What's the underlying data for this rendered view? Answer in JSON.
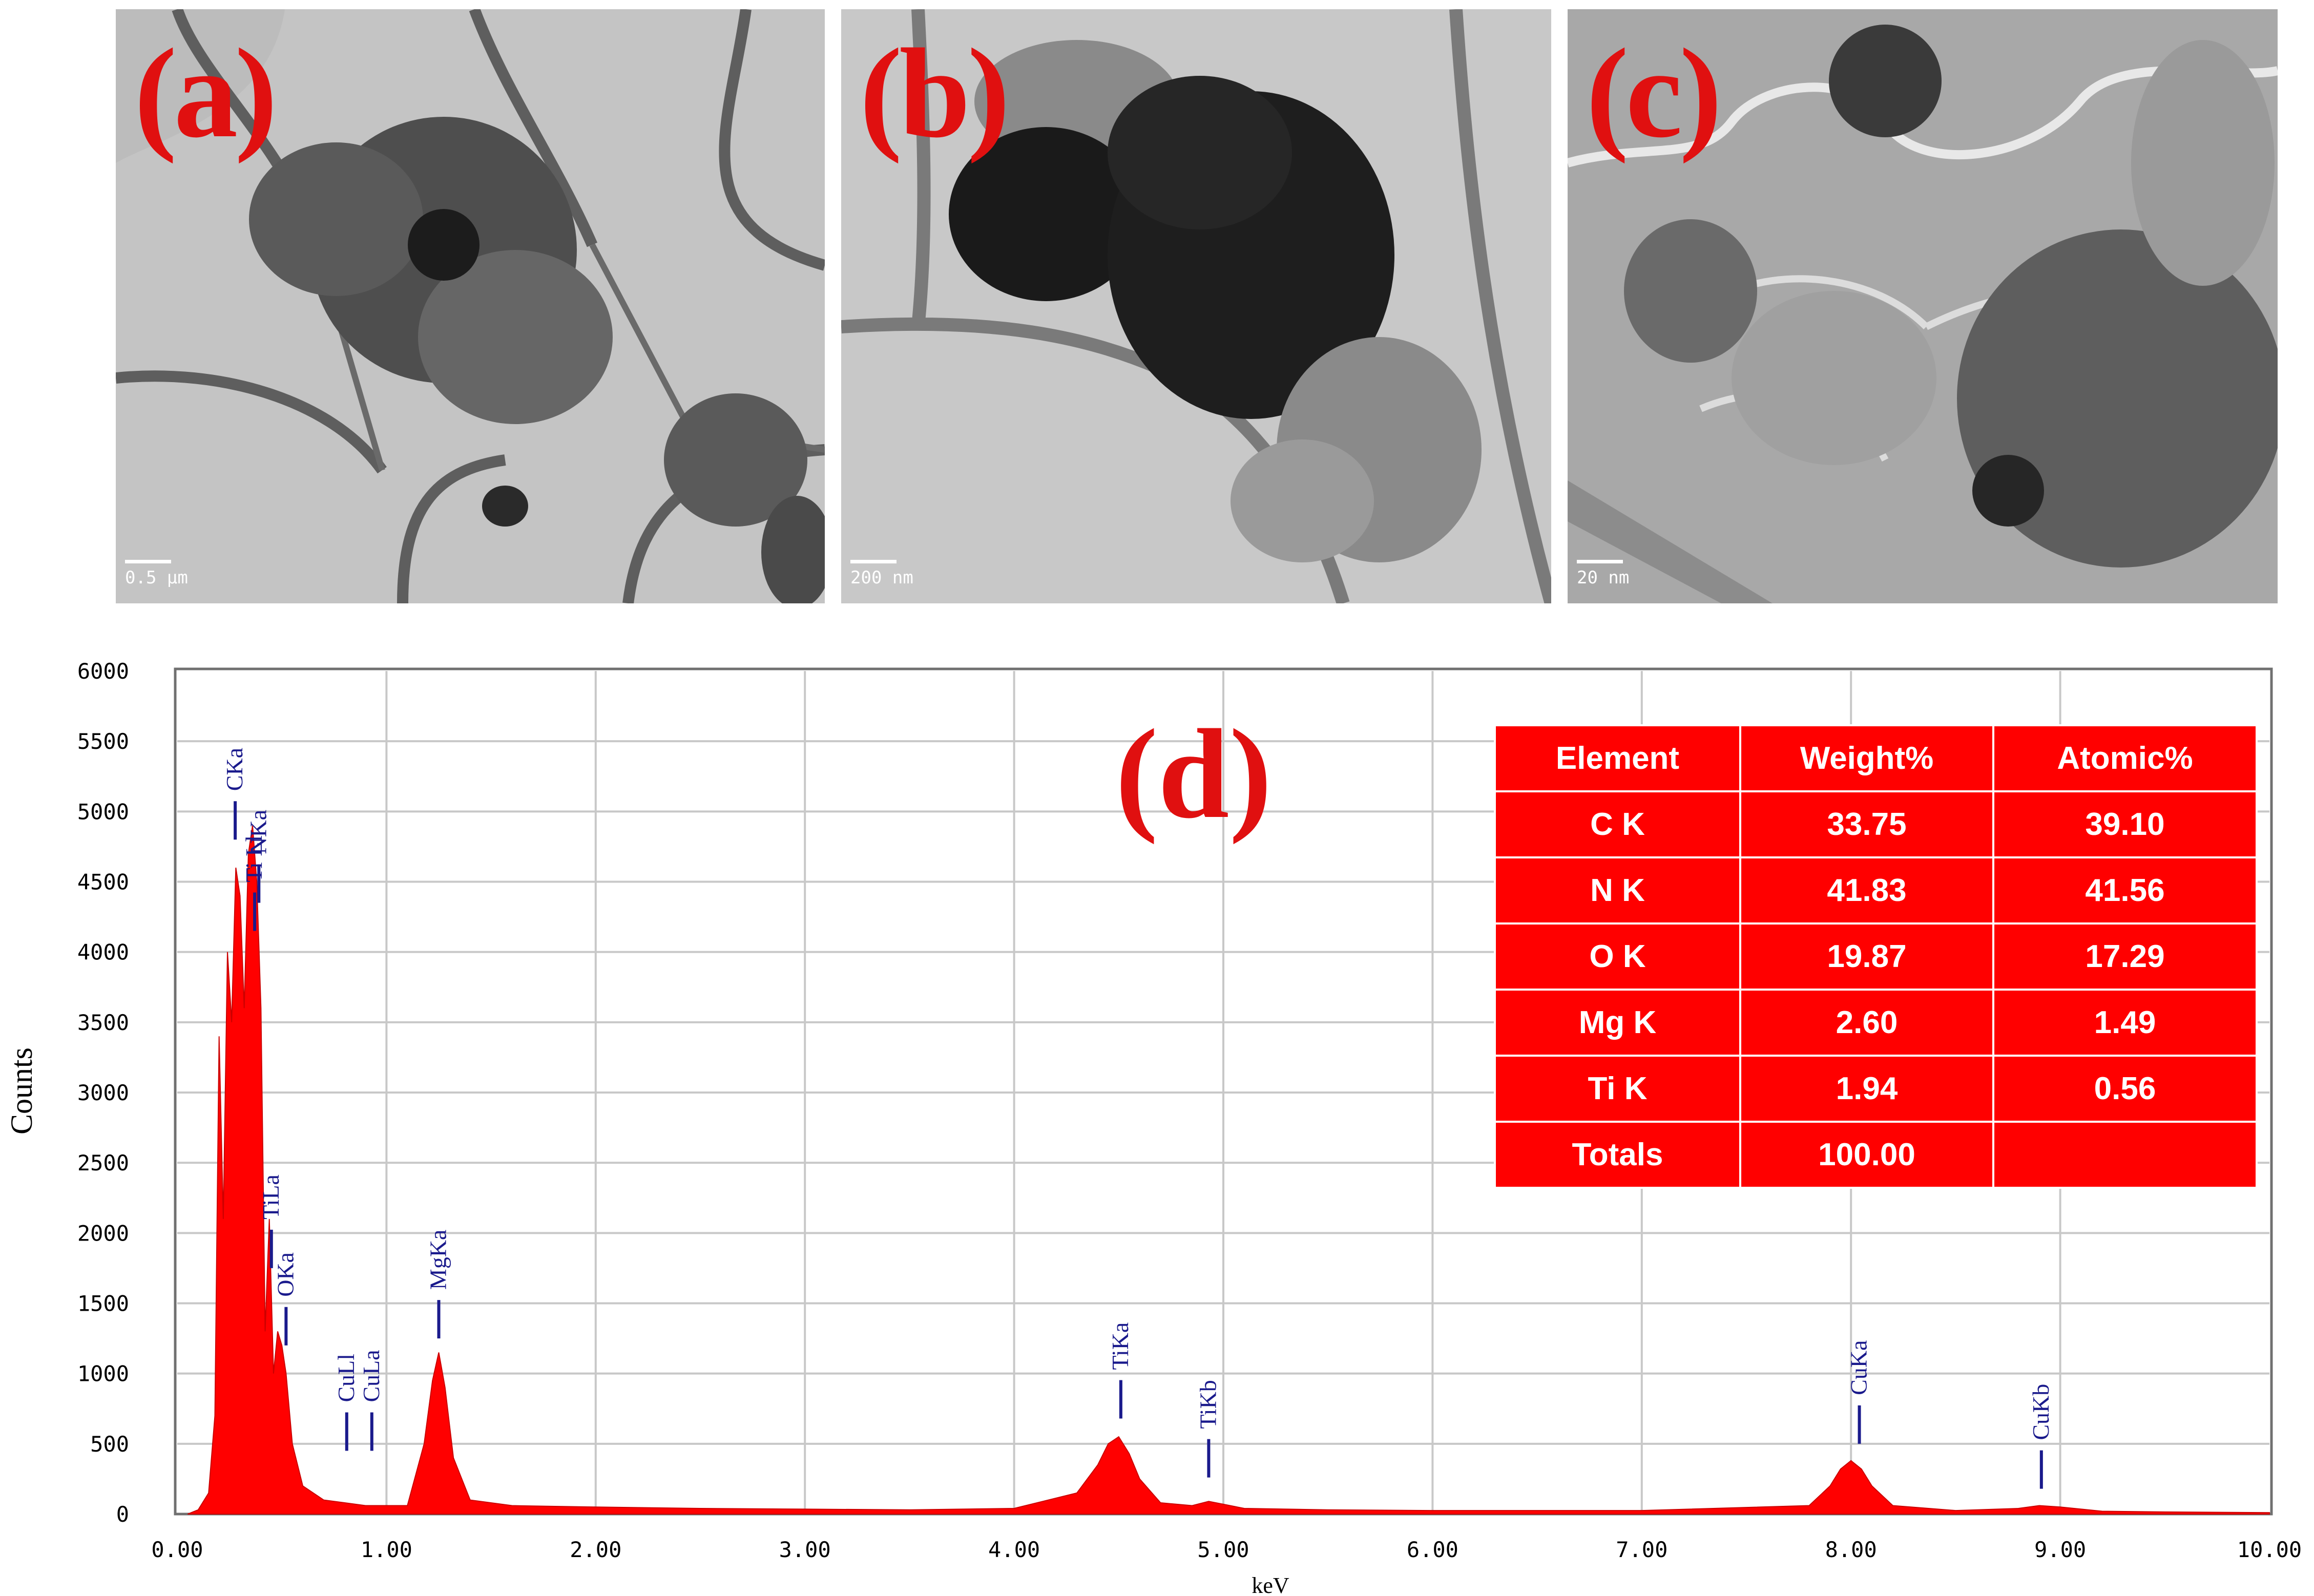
{
  "panels": [
    {
      "label": "(a)",
      "scale_bar": "0.5 µm"
    },
    {
      "label": "(b)",
      "scale_bar": "200 nm"
    },
    {
      "label": "(c)",
      "scale_bar": "20 nm"
    }
  ],
  "colors": {
    "panel_label": "#e01010",
    "spectrum": "#ff0000",
    "peak_label": "#1a1a8c",
    "table_bg": "#ff0000",
    "table_text": "#ffffff"
  },
  "chart_data": {
    "type": "area",
    "panel_label": "(d)",
    "xlabel": "keV",
    "ylabel": "Counts",
    "xlim": [
      0,
      10
    ],
    "ylim": [
      0,
      6000
    ],
    "grid": true,
    "x_ticks": [
      "0.00",
      "1.00",
      "2.00",
      "3.00",
      "4.00",
      "5.00",
      "6.00",
      "7.00",
      "8.00",
      "9.00",
      "10.00"
    ],
    "y_ticks": [
      "0",
      "500",
      "1000",
      "1500",
      "2000",
      "2500",
      "3000",
      "3500",
      "4000",
      "4500",
      "5000",
      "5500",
      "6000"
    ],
    "series": [
      {
        "x": [
          0.05,
          0.1,
          0.15,
          0.18,
          0.2,
          0.22,
          0.24,
          0.26,
          0.28,
          0.3,
          0.32,
          0.34,
          0.36,
          0.38,
          0.4,
          0.42,
          0.44,
          0.46,
          0.48,
          0.5,
          0.52,
          0.55,
          0.6,
          0.7,
          0.8,
          0.9,
          1.0,
          1.1,
          1.18,
          1.22,
          1.25,
          1.28,
          1.32,
          1.4,
          1.6,
          2.0,
          2.5,
          3.0,
          3.5,
          4.0,
          4.3,
          4.4,
          4.45,
          4.5,
          4.55,
          4.6,
          4.7,
          4.85,
          4.93,
          5.0,
          5.1,
          5.5,
          6.0,
          7.0,
          7.8,
          7.9,
          7.95,
          8.0,
          8.05,
          8.1,
          8.2,
          8.5,
          8.8,
          8.9,
          9.0,
          9.2,
          9.5,
          10.0
        ],
        "y": [
          0,
          30,
          150,
          700,
          3400,
          2100,
          4000,
          3500,
          4600,
          4400,
          3600,
          4700,
          4900,
          4500,
          3600,
          1300,
          2100,
          1000,
          1300,
          1200,
          1000,
          500,
          200,
          100,
          80,
          60,
          60,
          60,
          500,
          950,
          1150,
          900,
          400,
          100,
          60,
          50,
          40,
          35,
          30,
          40,
          150,
          350,
          500,
          550,
          430,
          250,
          80,
          60,
          90,
          70,
          40,
          30,
          25,
          25,
          60,
          200,
          320,
          380,
          320,
          200,
          60,
          25,
          40,
          60,
          50,
          20,
          15,
          10
        ]
      }
    ],
    "peaks": [
      {
        "label": "CKa",
        "x": 0.277,
        "y": 4800
      },
      {
        "label": "Ti Ll",
        "x": 0.37,
        "y": 4150
      },
      {
        "label": "NKa",
        "x": 0.39,
        "y": 4350
      },
      {
        "label": "TiLa",
        "x": 0.45,
        "y": 1750
      },
      {
        "label": "OKa",
        "x": 0.52,
        "y": 1200
      },
      {
        "label": "CuLl",
        "x": 0.81,
        "y": 450
      },
      {
        "label": "CuLa",
        "x": 0.93,
        "y": 450
      },
      {
        "label": "MgKa",
        "x": 1.25,
        "y": 1250
      },
      {
        "label": "TiKa",
        "x": 4.51,
        "y": 680
      },
      {
        "label": "TiKb",
        "x": 4.93,
        "y": 260
      },
      {
        "label": "CuKa",
        "x": 8.04,
        "y": 500
      },
      {
        "label": "CuKb",
        "x": 8.91,
        "y": 180
      }
    ]
  },
  "composition_table": {
    "headers": [
      "Element",
      "Weight%",
      "Atomic%"
    ],
    "rows": [
      [
        "C K",
        "33.75",
        "39.10"
      ],
      [
        "N K",
        "41.83",
        "41.56"
      ],
      [
        "O K",
        "19.87",
        "17.29"
      ],
      [
        "Mg K",
        "2.60",
        "1.49"
      ],
      [
        "Ti K",
        "1.94",
        "0.56"
      ],
      [
        "Totals",
        "100.00",
        ""
      ]
    ]
  }
}
